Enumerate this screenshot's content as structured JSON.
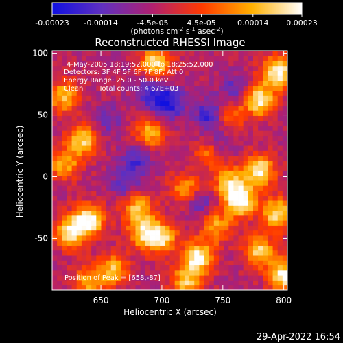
{
  "chart_data": {
    "type": "heatmap",
    "title": "Reconstructed RHESSI Image",
    "xlabel": "Heliocentric X (arcsec)",
    "ylabel": "Heliocentric Y (arcsec)",
    "xlim": [
      610,
      803
    ],
    "ylim": [
      -92,
      102
    ],
    "x_ticks": [
      650,
      700,
      750,
      800
    ],
    "y_ticks": [
      100,
      50,
      0,
      -50
    ],
    "colorbar": {
      "range": [
        -0.00023,
        0.00023
      ],
      "tick_values": [
        -0.00023,
        -0.00014,
        -4.5e-05,
        4.5e-05,
        0.00014,
        0.00023
      ],
      "tick_labels": [
        "-0.00023",
        "-0.00014",
        "-4.5e-05",
        "4.5e-05",
        "0.00014",
        "0.00023"
      ],
      "unit_label": "(photons cm",
      "unit_exp1": "-2",
      "unit_mid": " s",
      "unit_exp2": "-1",
      "unit_mid2": " asec",
      "unit_exp3": "-2",
      "unit_end": ")",
      "colors": [
        "#1010e0",
        "#6030c0",
        "#b02070",
        "#ff3a00",
        "#ffb000",
        "#ffffff"
      ]
    },
    "annotations": {
      "time_range": "4-May-2005 18:19:52.000 to 18:25:52.000",
      "detectors": "Detectors: 3F 4F 5F 6F 7F 8F, Att 0",
      "energy_range": "Energy Range: 25.0 - 50.0 keV",
      "method": "Clean",
      "total_counts": "Total counts: 4.67E+03",
      "peak_position": "Position of Peak = [658,-87]"
    },
    "grid_size": [
      48,
      48
    ],
    "background_level": -4e-05,
    "sources": [
      {
        "x": 695,
        "y": 92,
        "value": 0.0002
      },
      {
        "x": 795,
        "y": 85,
        "value": 0.00023
      },
      {
        "x": 780,
        "y": 62,
        "value": 0.00022
      },
      {
        "x": 620,
        "y": 65,
        "value": 0.00016
      },
      {
        "x": 635,
        "y": 30,
        "value": 0.00018
      },
      {
        "x": 620,
        "y": 10,
        "value": 0.00014
      },
      {
        "x": 640,
        "y": -35,
        "value": 0.00023
      },
      {
        "x": 625,
        "y": -45,
        "value": 0.0002
      },
      {
        "x": 690,
        "y": 35,
        "value": 0.00015
      },
      {
        "x": 680,
        "y": -25,
        "value": 0.00016
      },
      {
        "x": 700,
        "y": -50,
        "value": 0.00018
      },
      {
        "x": 685,
        "y": -45,
        "value": 0.00017
      },
      {
        "x": 720,
        "y": -10,
        "value": 0.00014
      },
      {
        "x": 740,
        "y": 20,
        "value": 0.00014
      },
      {
        "x": 755,
        "y": -5,
        "value": 0.00016
      },
      {
        "x": 780,
        "y": 5,
        "value": 0.00022
      },
      {
        "x": 765,
        "y": -20,
        "value": 0.00023
      },
      {
        "x": 795,
        "y": -30,
        "value": 0.0002
      },
      {
        "x": 780,
        "y": -60,
        "value": 0.00018
      },
      {
        "x": 730,
        "y": -65,
        "value": 0.00023
      },
      {
        "x": 720,
        "y": -85,
        "value": 0.00016
      },
      {
        "x": 800,
        "y": -80,
        "value": 0.00022
      },
      {
        "x": 660,
        "y": -75,
        "value": 0.00015
      },
      {
        "x": 640,
        "y": -85,
        "value": 0.00014
      },
      {
        "x": 755,
        "y": 50,
        "value": 0.00012
      },
      {
        "x": 745,
        "y": -40,
        "value": 0.00013
      }
    ],
    "dips": [
      {
        "x": 705,
        "y": 60,
        "value": -0.00022
      },
      {
        "x": 690,
        "y": 70,
        "value": -0.00016
      },
      {
        "x": 740,
        "y": 50,
        "value": -0.0002
      },
      {
        "x": 745,
        "y": 25,
        "value": -0.00016
      },
      {
        "x": 680,
        "y": 15,
        "value": -0.00016
      },
      {
        "x": 730,
        "y": -20,
        "value": -0.00015
      },
      {
        "x": 670,
        "y": -5,
        "value": -0.00014
      },
      {
        "x": 760,
        "y": 70,
        "value": -0.00014
      },
      {
        "x": 655,
        "y": 45,
        "value": -0.00012
      }
    ]
  },
  "footer": {
    "timestamp": "29-Apr-2022 16:54"
  }
}
